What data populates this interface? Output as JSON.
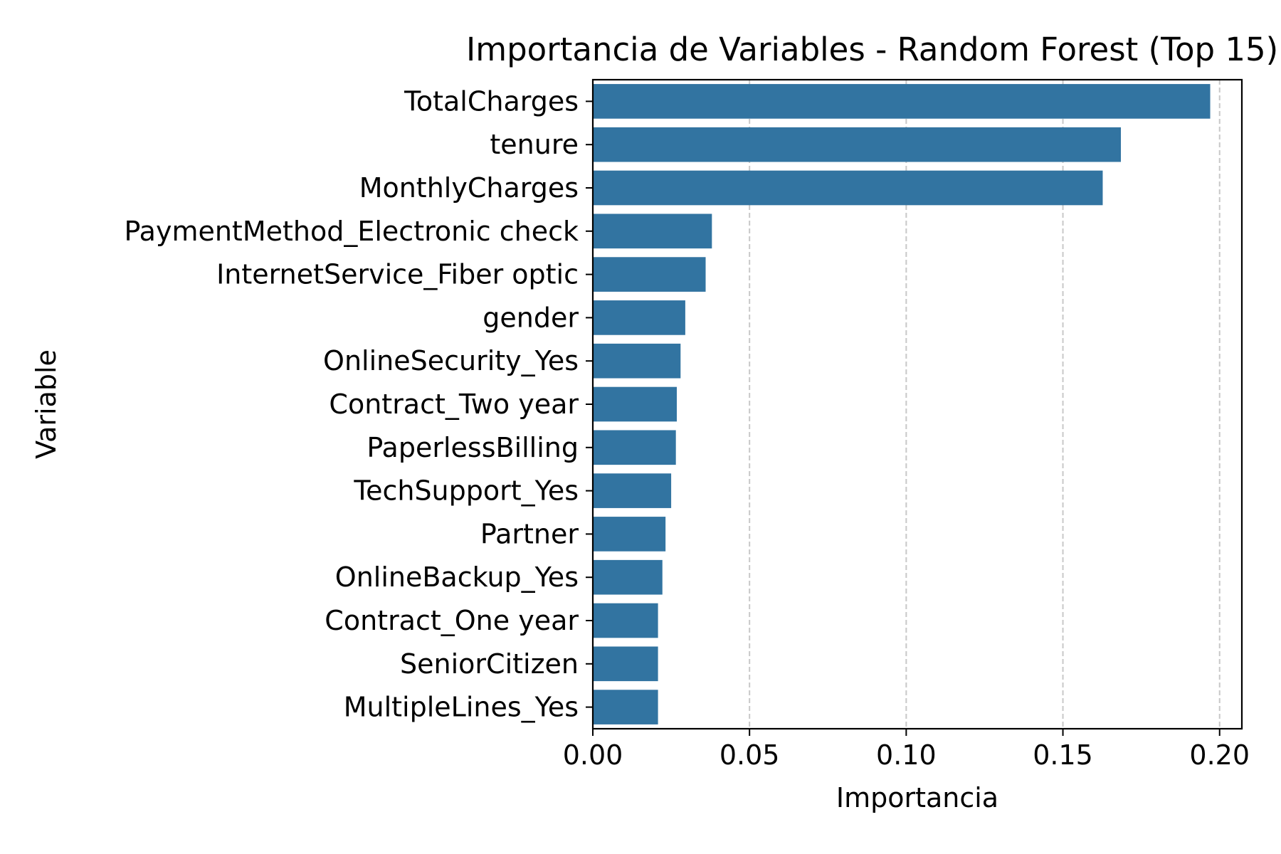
{
  "chart_data": {
    "type": "bar",
    "orientation": "horizontal",
    "title": "Importancia de Variables - Random Forest (Top 15)",
    "xlabel": "Importancia",
    "ylabel": "Variable",
    "xlim": [
      0,
      0.2071
    ],
    "xticks": [
      "0.00",
      "0.05",
      "0.10",
      "0.15",
      "0.20"
    ],
    "xtick_values": [
      0,
      0.05,
      0.1,
      0.15,
      0.2
    ],
    "grid": "x-dashed",
    "bar_color": "#3274a1",
    "categories": [
      "TotalCharges",
      "tenure",
      "MonthlyCharges",
      "PaymentMethod_Electronic check",
      "InternetService_Fiber optic",
      "gender",
      "OnlineSecurity_Yes",
      "Contract_Two year",
      "PaperlessBilling",
      "TechSupport_Yes",
      "Partner",
      "OnlineBackup_Yes",
      "Contract_One year",
      "SeniorCitizen",
      "MultipleLines_Yes"
    ],
    "values": [
      0.197,
      0.1685,
      0.1627,
      0.038,
      0.036,
      0.0295,
      0.028,
      0.0268,
      0.0265,
      0.025,
      0.0232,
      0.0222,
      0.0208,
      0.0208,
      0.0208
    ]
  }
}
